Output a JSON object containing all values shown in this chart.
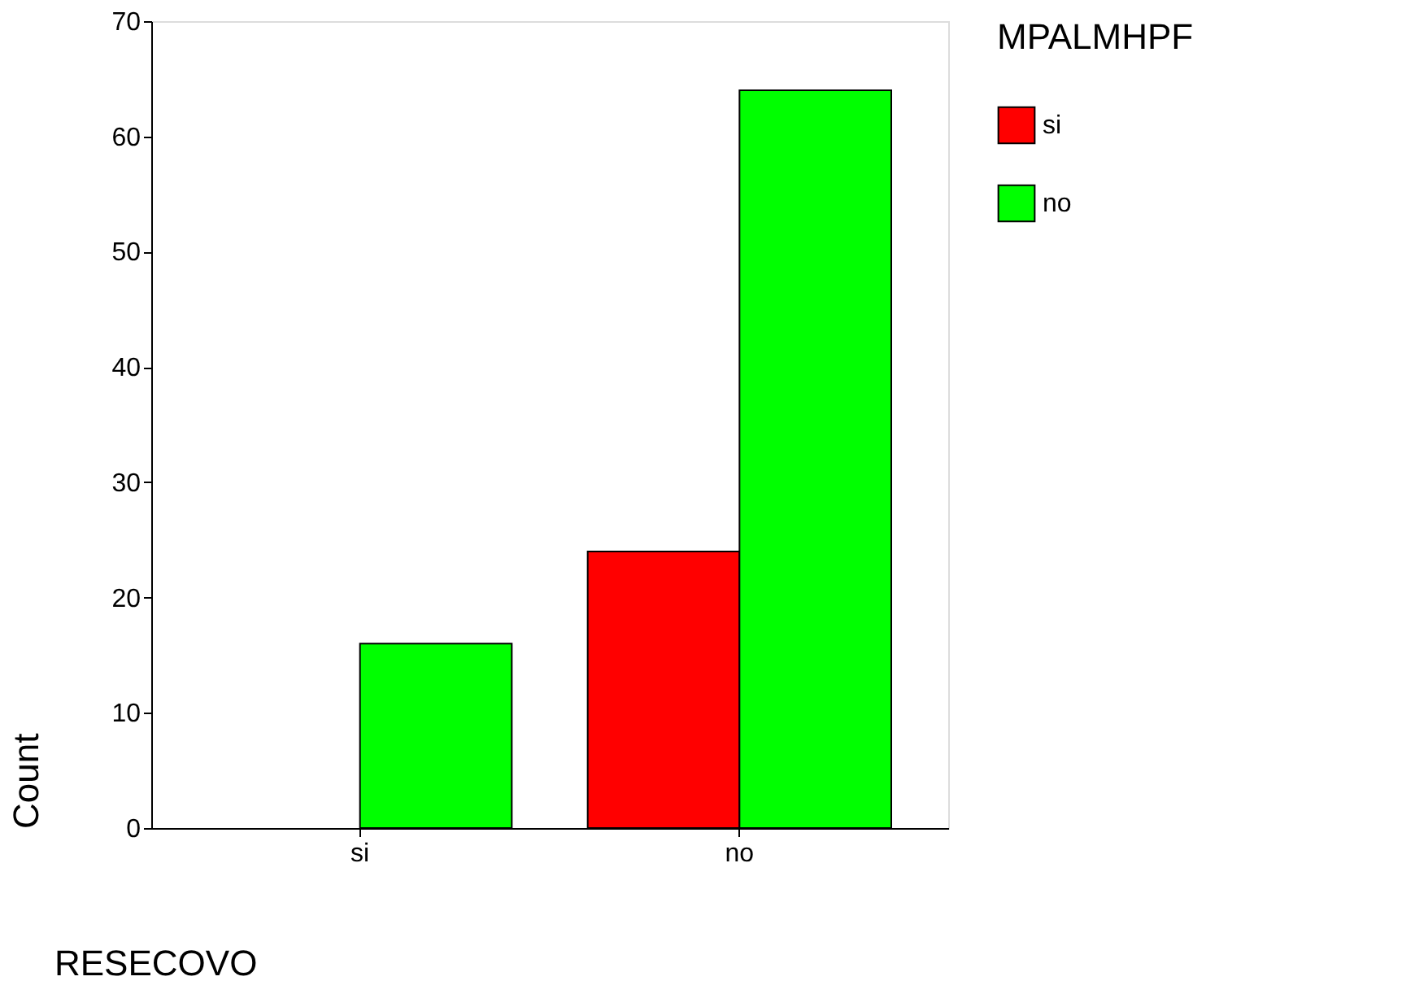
{
  "chart_data": {
    "type": "bar",
    "xlabel": "RESECOVO",
    "ylabel": "Count",
    "legend_title": "MPALMHPF",
    "categories": [
      "si",
      "no"
    ],
    "series": [
      {
        "name": "si",
        "color": "#ff0000",
        "values": [
          null,
          24
        ]
      },
      {
        "name": "no",
        "color": "#00ff00",
        "values": [
          16,
          64
        ]
      }
    ],
    "ylim": [
      0,
      70
    ],
    "yticks": [
      0,
      10,
      20,
      30,
      40,
      50,
      60,
      70
    ],
    "grid": false,
    "legend": "right"
  }
}
